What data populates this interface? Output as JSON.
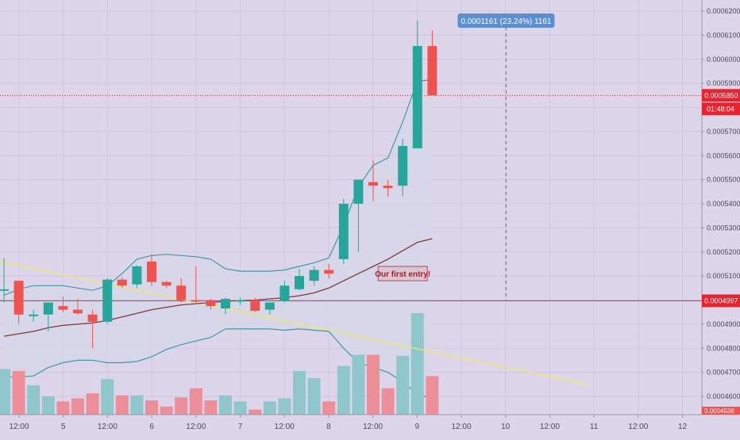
{
  "chart_data": {
    "type": "candlestick",
    "title": "",
    "xlabel": "",
    "ylabel": "",
    "ylim": [
      0.000452,
      0.00062
    ],
    "grid": true,
    "x_ticks": [
      "12:00",
      "5",
      "12:00",
      "6",
      "12:00",
      "7",
      "12:00",
      "8",
      "12:00",
      "9",
      "12:00",
      "10",
      "12:00",
      "11",
      "12:00",
      "12"
    ],
    "y_ticks": [
      "0.0006200",
      "0.0006100",
      "0.0006000",
      "0.0005900",
      "0.0005700",
      "0.0005600",
      "0.0005500",
      "0.0005400",
      "0.0005300",
      "0.0005200",
      "0.0005100",
      "0.0004900",
      "0.0004800",
      "0.0004700",
      "0.0004600"
    ],
    "candles": [
      {
        "o": 0.0005045,
        "h": 0.0005175,
        "l": 0.000499,
        "c": 0.0005045
      },
      {
        "o": 0.000508,
        "h": 0.000508,
        "l": 0.00049,
        "c": 0.000494
      },
      {
        "o": 0.000494,
        "h": 0.000496,
        "l": 0.000491,
        "c": 0.000494
      },
      {
        "o": 0.000494,
        "h": 0.000499,
        "l": 0.000487,
        "c": 0.000499
      },
      {
        "o": 0.0004975,
        "h": 0.0005015,
        "l": 0.000495,
        "c": 0.000496
      },
      {
        "o": 0.000496,
        "h": 0.0005005,
        "l": 0.000494,
        "c": 0.0004945
      },
      {
        "o": 0.000494,
        "h": 0.000496,
        "l": 0.00048,
        "c": 0.000491
      },
      {
        "o": 0.000491,
        "h": 0.000509,
        "l": 0.00049,
        "c": 0.0005085
      },
      {
        "o": 0.0005085,
        "h": 0.0005095,
        "l": 0.000505,
        "c": 0.000506
      },
      {
        "o": 0.0005065,
        "h": 0.0005145,
        "l": 0.000505,
        "c": 0.000514
      },
      {
        "o": 0.000516,
        "h": 0.000519,
        "l": 0.000506,
        "c": 0.0005075
      },
      {
        "o": 0.0005075,
        "h": 0.000508,
        "l": 0.000505,
        "c": 0.000506
      },
      {
        "o": 0.000506,
        "h": 0.000509,
        "l": 0.000499,
        "c": 0.0005
      },
      {
        "o": 0.0005,
        "h": 0.000514,
        "l": 0.000499,
        "c": 0.0004995
      },
      {
        "o": 0.0005,
        "h": 0.0005005,
        "l": 0.000496,
        "c": 0.0004975
      },
      {
        "o": 0.0004965,
        "h": 0.000501,
        "l": 0.000494,
        "c": 0.0005005
      },
      {
        "o": 0.0005,
        "h": 0.000501,
        "l": 0.000498,
        "c": 0.0005
      },
      {
        "o": 0.0005,
        "h": 0.000501,
        "l": 0.000495,
        "c": 0.0004955
      },
      {
        "o": 0.000496,
        "h": 0.000498,
        "l": 0.000494,
        "c": 0.000499
      },
      {
        "o": 0.0004995,
        "h": 0.000508,
        "l": 0.000499,
        "c": 0.000506
      },
      {
        "o": 0.0005045,
        "h": 0.000513,
        "l": 0.000504,
        "c": 0.00051
      },
      {
        "o": 0.000508,
        "h": 0.000514,
        "l": 0.000506,
        "c": 0.0005125
      },
      {
        "o": 0.0005125,
        "h": 0.000515,
        "l": 0.000509,
        "c": 0.000511
      },
      {
        "o": 0.000517,
        "h": 0.000542,
        "l": 0.000515,
        "c": 0.00054
      },
      {
        "o": 0.00054,
        "h": 0.00055,
        "l": 0.00052,
        "c": 0.00055
      },
      {
        "o": 0.000549,
        "h": 0.000558,
        "l": 0.000541,
        "c": 0.0005475
      },
      {
        "o": 0.0005475,
        "h": 0.00055,
        "l": 0.000543,
        "c": 0.0005465
      },
      {
        "o": 0.0005475,
        "h": 0.000567,
        "l": 0.000543,
        "c": 0.000564
      },
      {
        "o": 0.000563,
        "h": 0.000616,
        "l": 0.000563,
        "c": 0.0006055
      },
      {
        "o": 0.0006055,
        "h": 0.000612,
        "l": 0.000585,
        "c": 0.000585
      }
    ],
    "volumes": [
      0.45,
      0.43,
      0.29,
      0.18,
      0.13,
      0.16,
      0.21,
      0.35,
      0.19,
      0.19,
      0.14,
      0.08,
      0.17,
      0.26,
      0.14,
      0.19,
      0.13,
      0.05,
      0.13,
      0.16,
      0.43,
      0.36,
      0.13,
      0.48,
      0.59,
      0.59,
      0.26,
      0.58,
      1.0,
      0.38
    ],
    "moving_average": [
      0.000485,
      0.000486,
      0.000487,
      0.0004885,
      0.0004895,
      0.00049,
      0.0004905,
      0.0004915,
      0.000493,
      0.0004945,
      0.000496,
      0.000497,
      0.000498,
      0.0004985,
      0.000499,
      0.0004995,
      0.0004998,
      0.0005,
      0.0005005,
      0.000501,
      0.0005018,
      0.000503,
      0.000505,
      0.000508,
      0.000511,
      0.000514,
      0.000517,
      0.0005205,
      0.000524,
      0.0005255
    ],
    "bollinger_upper": [
      0.000502,
      0.0005045,
      0.000506,
      0.000506,
      0.000506,
      0.000505,
      0.000504,
      0.000506,
      0.000511,
      0.000517,
      0.0005185,
      0.000519,
      0.0005185,
      0.000518,
      0.000517,
      0.000513,
      0.000512,
      0.000512,
      0.000512,
      0.0005125,
      0.000514,
      0.0005155,
      0.0005175,
      0.000531,
      0.000547,
      0.000556,
      0.000559,
      0.000574,
      0.000591,
      0.0005915
    ],
    "bollinger_lower": [
      0.000468,
      0.000468,
      0.0004685,
      0.000472,
      0.000474,
      0.000475,
      0.000475,
      0.000474,
      0.000474,
      0.0004745,
      0.0004765,
      0.0004795,
      0.0004815,
      0.000483,
      0.0004845,
      0.000488,
      0.000488,
      0.000488,
      0.000488,
      0.0004875,
      0.000488,
      0.0004875,
      0.000487,
      0.00048,
      0.000474,
      0.000472,
      0.00047,
      0.000466,
      0.000461,
      0.000459
    ],
    "trendline": {
      "x0": -1.8,
      "y0": 0.000518,
      "x1": 39.5,
      "y1": 0.000465,
      "color": "#ecec5a"
    },
    "horizontal_line": {
      "value": 0.0004997,
      "label": "0.0004997",
      "color": "#e8232f"
    },
    "current_price": {
      "value": 0.000585,
      "label": "0.0005850",
      "countdown": "01:48:04",
      "color": "#e8232f"
    },
    "volume_axis_label": "0.0004538",
    "measure": {
      "x": 34.0,
      "label": "0.0001161 (23.24%) 1161"
    },
    "annotation": {
      "x": 27.0,
      "y": 0.000511,
      "text": "Our first entry!"
    },
    "colors": {
      "up": "#26a69a",
      "down": "#ef5350",
      "up_volume": "#8fc7cc",
      "down_volume": "#ec8f98",
      "ma": "#7b3a3a",
      "bollinger": "#3f9aa4",
      "band_fill": "#d5d7ea"
    }
  }
}
